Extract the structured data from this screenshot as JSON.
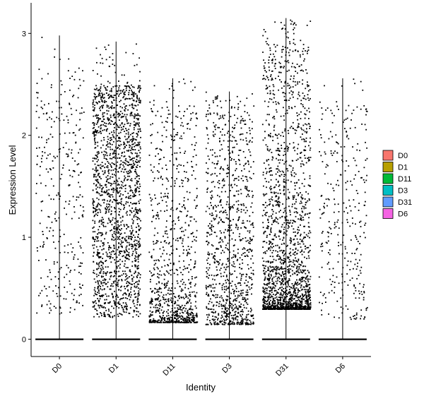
{
  "chart_data": {
    "type": "scatter",
    "subtype": "violin-jitter",
    "title": "",
    "xlabel": "Identity",
    "ylabel": "Expression Level",
    "categories": [
      "D0",
      "D1",
      "D11",
      "D3",
      "D31",
      "D6"
    ],
    "ylim": [
      -0.17,
      3.3
    ],
    "yticks": [
      0,
      1,
      2,
      3
    ],
    "grid": false,
    "legend": {
      "placement": "right",
      "entries": [
        {
          "label": "D0",
          "color": "#F8766D"
        },
        {
          "label": "D1",
          "color": "#B79F00"
        },
        {
          "label": "D11",
          "color": "#00BA38"
        },
        {
          "label": "D3",
          "color": "#00BFC4"
        },
        {
          "label": "D31",
          "color": "#619CFF"
        },
        {
          "label": "D6",
          "color": "#F564E3"
        }
      ]
    },
    "series": [
      {
        "category": "D0",
        "max": 2.98,
        "low": 0.25,
        "high": 2.65,
        "count": 320,
        "skew": 1.0
      },
      {
        "category": "D1",
        "max": 2.92,
        "low": 0.22,
        "high": 2.5,
        "count": 1800,
        "skew": 0.95
      },
      {
        "category": "D11",
        "max": 2.56,
        "low": 0.17,
        "high": 2.3,
        "count": 900,
        "skew": 2.6
      },
      {
        "category": "D3",
        "max": 2.43,
        "low": 0.15,
        "high": 2.3,
        "count": 1000,
        "skew": 1.6
      },
      {
        "category": "D31",
        "max": 3.15,
        "low": 0.3,
        "high": 2.9,
        "count": 1900,
        "skew": 2.4
      },
      {
        "category": "D6",
        "max": 2.56,
        "low": 0.2,
        "high": 2.3,
        "count": 320,
        "skew": 1.2
      }
    ],
    "zero_band": true
  }
}
